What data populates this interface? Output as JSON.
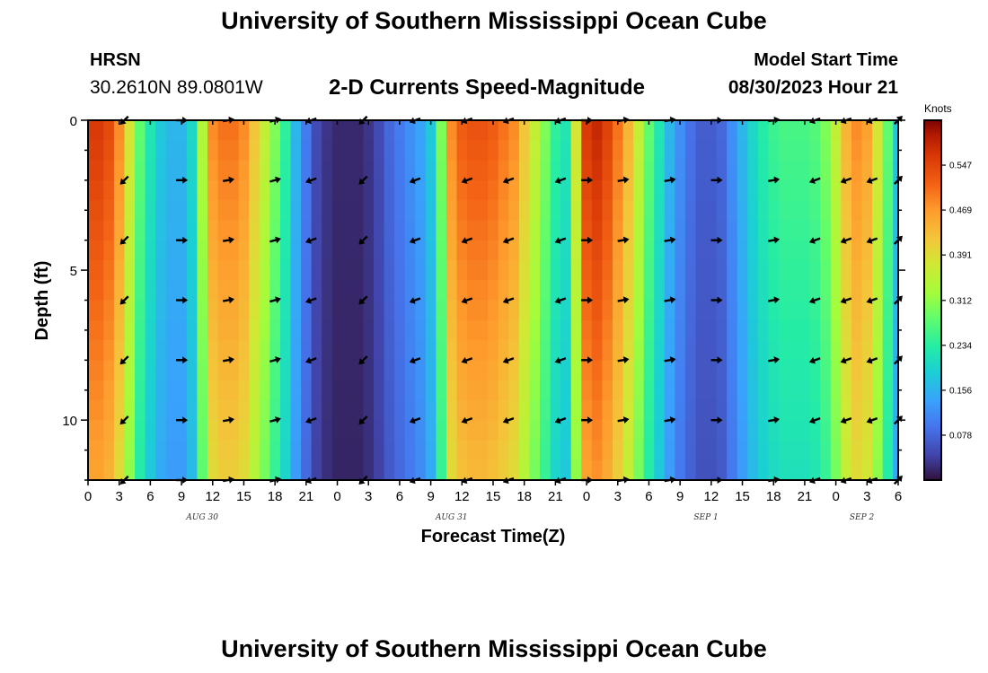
{
  "header": {
    "title": "University of Southern Mississippi Ocean Cube",
    "station_code": "HRSN",
    "station_coords": "30.2610N  89.0801W",
    "chart_subtitle": "2-D Currents Speed-Magnitude",
    "model_start_label": "Model Start Time",
    "model_start_value": "08/30/2023 Hour 21"
  },
  "footer": {
    "title": "University of Southern Mississippi Ocean Cube"
  },
  "chart_data": {
    "type": "heatmap",
    "title": "2-D Currents Speed-Magnitude",
    "xlabel": "Forecast Time(Z)",
    "ylabel": "Depth (ft)",
    "colorbar_unit": "Knots",
    "x_hours": [
      0,
      3,
      6,
      9,
      12,
      15,
      18,
      21,
      24,
      27,
      30,
      33,
      36,
      39,
      42,
      45,
      48,
      51,
      54,
      57,
      60,
      63,
      66,
      69,
      72,
      75,
      78
    ],
    "x_tick_labels": [
      "0",
      "3",
      "6",
      "9",
      "12",
      "15",
      "18",
      "21",
      "0",
      "3",
      "6",
      "9",
      "12",
      "15",
      "18",
      "21",
      "0",
      "3",
      "6",
      "9",
      "12",
      "15",
      "18",
      "21",
      "0",
      "3",
      "6"
    ],
    "x_date_labels": [
      {
        "text": "AUG 30",
        "hour": 11
      },
      {
        "text": "AUG 31",
        "hour": 35
      },
      {
        "text": "SEP 1",
        "hour": 59.5
      },
      {
        "text": "SEP 2",
        "hour": 74.5
      }
    ],
    "y_ticks": [
      0,
      5,
      10
    ],
    "y_range": [
      0,
      12
    ],
    "x_range": [
      0,
      78
    ],
    "colorbar_ticks": [
      0.078,
      0.156,
      0.234,
      0.312,
      0.391,
      0.469,
      0.547
    ],
    "colorbar_range": [
      0.0,
      0.625
    ],
    "speed_profile": {
      "hours": [
        0,
        1,
        2,
        3,
        4,
        5,
        6,
        7,
        8,
        9,
        10,
        11,
        12,
        13,
        14,
        15,
        16,
        17,
        18,
        19,
        20,
        21,
        22,
        23,
        24,
        25,
        26,
        27,
        28,
        29,
        30,
        31,
        32,
        33,
        34,
        35,
        36,
        37,
        38,
        39,
        40,
        41,
        42,
        43,
        44,
        45,
        46,
        47,
        48,
        49,
        50,
        51,
        52,
        53,
        54,
        55,
        56,
        57,
        58,
        59,
        60,
        61,
        62,
        63,
        64,
        65,
        66,
        67,
        68,
        69,
        70,
        71,
        72,
        73,
        74,
        75,
        76,
        77,
        78
      ],
      "knots": [
        0.56,
        0.56,
        0.54,
        0.48,
        0.38,
        0.28,
        0.22,
        0.18,
        0.16,
        0.16,
        0.2,
        0.34,
        0.48,
        0.5,
        0.5,
        0.48,
        0.42,
        0.36,
        0.3,
        0.24,
        0.16,
        0.1,
        0.05,
        0.03,
        0.02,
        0.02,
        0.02,
        0.03,
        0.05,
        0.08,
        0.1,
        0.12,
        0.14,
        0.18,
        0.3,
        0.48,
        0.52,
        0.53,
        0.53,
        0.52,
        0.5,
        0.48,
        0.42,
        0.36,
        0.3,
        0.24,
        0.22,
        0.38,
        0.56,
        0.58,
        0.55,
        0.5,
        0.44,
        0.36,
        0.28,
        0.22,
        0.16,
        0.12,
        0.09,
        0.07,
        0.07,
        0.08,
        0.12,
        0.16,
        0.2,
        0.23,
        0.25,
        0.26,
        0.26,
        0.26,
        0.27,
        0.3,
        0.36,
        0.44,
        0.48,
        0.46,
        0.38,
        0.28,
        0.18
      ]
    },
    "current_vectors": {
      "hours": [
        3.5,
        9,
        13.5,
        18,
        21.5,
        26.5,
        31.5,
        36.5,
        40.5,
        45.5,
        48,
        51.5,
        56,
        60.5,
        66,
        70,
        73,
        75.5,
        78
      ],
      "depths": [
        0,
        2,
        4,
        6,
        8,
        10,
        12
      ],
      "direction_deg": [
        225,
        90,
        80,
        75,
        250,
        225,
        250,
        250,
        250,
        250,
        90,
        80,
        80,
        90,
        80,
        250,
        250,
        250,
        45
      ]
    }
  }
}
